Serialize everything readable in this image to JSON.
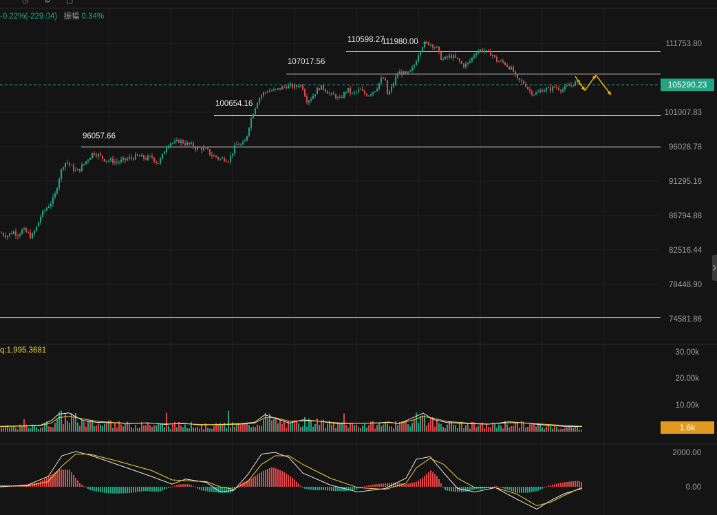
{
  "header": {
    "change_text": "-0.22%(-229.04)",
    "amplitude_label": "振幅",
    "amplitude_value": "0.34%"
  },
  "colors": {
    "up": "#21a584",
    "down": "#e0474b",
    "current_price_bg": "#21a584",
    "volume_tag_bg": "#e09a1e",
    "ma_white": "#e6e6e6",
    "ma_yellow": "#f0d23a",
    "forecast_arrow": "#f5b800"
  },
  "chart_data": {
    "type": "candlestick",
    "price_axis": {
      "ticks": [
        "111753.80",
        "101007.83",
        "96028.78",
        "91295.16",
        "86794.88",
        "82516.44",
        "78448.90",
        "74581.86"
      ],
      "tick_values": [
        111753.8,
        101007.83,
        96028.78,
        91295.16,
        86794.88,
        82516.44,
        78448.9,
        74581.86
      ],
      "current_price": "105290.23",
      "current_price_value": 105290.23
    },
    "levels": [
      {
        "label": "110598.27",
        "value": 110598.27
      },
      {
        "label": "107017.56",
        "value": 107017.56
      },
      {
        "label": "100654.16",
        "value": 100654.16
      },
      {
        "label": "96057.66",
        "value": 96057.66
      },
      {
        "label": "",
        "value": 74700
      }
    ],
    "high_marker": "111980.00",
    "high_marker_value": 111980,
    "price_path": [
      [
        0,
        84600
      ],
      [
        10,
        84300
      ],
      [
        18,
        84800
      ],
      [
        25,
        84500
      ],
      [
        32,
        85000
      ],
      [
        40,
        84500
      ],
      [
        45,
        84100
      ],
      [
        52,
        85300
      ],
      [
        58,
        86700
      ],
      [
        65,
        87600
      ],
      [
        72,
        88400
      ],
      [
        78,
        89100
      ],
      [
        84,
        91500
      ],
      [
        90,
        93400
      ],
      [
        96,
        94000
      ],
      [
        102,
        93300
      ],
      [
        110,
        92600
      ],
      [
        116,
        93000
      ],
      [
        122,
        93800
      ],
      [
        128,
        94500
      ],
      [
        134,
        95200
      ],
      [
        140,
        95000
      ],
      [
        150,
        94300
      ],
      [
        160,
        94100
      ],
      [
        170,
        93900
      ],
      [
        180,
        94200
      ],
      [
        190,
        94500
      ],
      [
        200,
        94700
      ],
      [
        210,
        94400
      ],
      [
        220,
        94600
      ],
      [
        228,
        93700
      ],
      [
        234,
        94500
      ],
      [
        240,
        96000
      ],
      [
        246,
        96700
      ],
      [
        252,
        96500
      ],
      [
        260,
        96900
      ],
      [
        268,
        96500
      ],
      [
        276,
        96300
      ],
      [
        284,
        95800
      ],
      [
        292,
        95800
      ],
      [
        300,
        95500
      ],
      [
        306,
        94800
      ],
      [
        312,
        94700
      ],
      [
        318,
        94300
      ],
      [
        325,
        94400
      ],
      [
        332,
        94200
      ],
      [
        338,
        95600
      ],
      [
        344,
        96500
      ],
      [
        350,
        96200
      ],
      [
        356,
        96900
      ],
      [
        362,
        99500
      ],
      [
        368,
        101300
      ],
      [
        374,
        103000
      ],
      [
        380,
        103800
      ],
      [
        386,
        104300
      ],
      [
        392,
        104400
      ],
      [
        398,
        104400
      ],
      [
        404,
        104600
      ],
      [
        410,
        104900
      ],
      [
        416,
        105100
      ],
      [
        422,
        105100
      ],
      [
        428,
        104900
      ],
      [
        434,
        105400
      ],
      [
        440,
        104700
      ],
      [
        444,
        102800
      ],
      [
        450,
        103100
      ],
      [
        456,
        103900
      ],
      [
        462,
        104800
      ],
      [
        468,
        104900
      ],
      [
        474,
        104300
      ],
      [
        480,
        103700
      ],
      [
        486,
        103600
      ],
      [
        492,
        102900
      ],
      [
        498,
        103800
      ],
      [
        504,
        104600
      ],
      [
        510,
        103800
      ],
      [
        516,
        104100
      ],
      [
        522,
        104600
      ],
      [
        528,
        103900
      ],
      [
        534,
        103700
      ],
      [
        540,
        104200
      ],
      [
        546,
        104700
      ],
      [
        552,
        106000
      ],
      [
        558,
        106400
      ],
      [
        562,
        103800
      ],
      [
        566,
        104300
      ],
      [
        572,
        105800
      ],
      [
        578,
        107300
      ],
      [
        584,
        107100
      ],
      [
        590,
        106900
      ],
      [
        596,
        107400
      ],
      [
        602,
        108500
      ],
      [
        606,
        109900
      ],
      [
        610,
        110900
      ],
      [
        614,
        111600
      ],
      [
        618,
        111800
      ],
      [
        624,
        111700
      ],
      [
        630,
        111300
      ],
      [
        634,
        111000
      ],
      [
        638,
        109800
      ],
      [
        642,
        109200
      ],
      [
        648,
        109500
      ],
      [
        654,
        109800
      ],
      [
        660,
        109500
      ],
      [
        666,
        109000
      ],
      [
        672,
        108300
      ],
      [
        678,
        108500
      ],
      [
        684,
        109300
      ],
      [
        690,
        110400
      ],
      [
        696,
        110700
      ],
      [
        702,
        110700
      ],
      [
        708,
        110300
      ],
      [
        714,
        110100
      ],
      [
        720,
        109100
      ],
      [
        726,
        108900
      ],
      [
        732,
        108700
      ],
      [
        738,
        108100
      ],
      [
        744,
        107600
      ],
      [
        750,
        106100
      ],
      [
        756,
        105800
      ],
      [
        762,
        105400
      ],
      [
        768,
        104400
      ],
      [
        774,
        103900
      ],
      [
        780,
        104000
      ],
      [
        786,
        104500
      ],
      [
        792,
        104600
      ],
      [
        798,
        104600
      ],
      [
        804,
        104900
      ],
      [
        810,
        104800
      ],
      [
        816,
        104500
      ],
      [
        822,
        104900
      ],
      [
        828,
        105300
      ],
      [
        834,
        105500
      ],
      [
        840,
        105700
      ],
      [
        846,
        105290
      ]
    ],
    "forecast_path": [
      [
        836,
        106600
      ],
      [
        850,
        104400
      ],
      [
        866,
        106800
      ],
      [
        888,
        103700
      ]
    ],
    "volume_panel": {
      "label": "q:1,995.3681",
      "ticks": [
        "30.00k",
        "20.00k",
        "10.00k"
      ],
      "tick_values": [
        30000,
        20000,
        10000
      ],
      "current_tag": "1.6k",
      "current_value": 1600,
      "series": [
        {
          "x": [
            0,
            40,
            60,
            75,
            85,
            100,
            120,
            140,
            165,
            190,
            215,
            240,
            265,
            290,
            320,
            350,
            370,
            385,
            400,
            420,
            440,
            460,
            490,
            520,
            550,
            565,
            580,
            600,
            615,
            630,
            650,
            680,
            710,
            740,
            760,
            790,
            820,
            846
          ],
          "values": [
            2000,
            2200,
            2500,
            4200,
            6500,
            7000,
            4200,
            3500,
            3300,
            3000,
            3300,
            2700,
            3200,
            2500,
            2700,
            3000,
            3500,
            6300,
            5000,
            3200,
            4400,
            4000,
            3000,
            3100,
            3300,
            3600,
            3000,
            5200,
            6900,
            4500,
            3400,
            3000,
            2800,
            3700,
            3300,
            2500,
            2000,
            1900
          ]
        },
        {
          "x": [
            0,
            40,
            60,
            75,
            85,
            100,
            120,
            140,
            165,
            190,
            215,
            240,
            265,
            290,
            320,
            350,
            370,
            385,
            400,
            420,
            440,
            460,
            490,
            520,
            550,
            565,
            580,
            600,
            615,
            630,
            650,
            680,
            710,
            740,
            760,
            790,
            820,
            846
          ],
          "values": [
            1900,
            2100,
            2300,
            3300,
            5200,
            5800,
            4800,
            3900,
            3400,
            3100,
            3200,
            2900,
            3000,
            2700,
            2600,
            2800,
            3200,
            5200,
            5200,
            3900,
            4000,
            4000,
            3300,
            3100,
            3200,
            3400,
            3100,
            4300,
            5700,
            5000,
            3800,
            3200,
            2900,
            3300,
            3300,
            2800,
            2300,
            2000
          ]
        }
      ]
    },
    "macd_panel": {
      "ticks": [
        "2000.00",
        "0.00"
      ],
      "tick_values": [
        2000,
        0
      ],
      "hist_x": [
        0,
        30,
        55,
        70,
        85,
        100,
        115,
        130,
        150,
        170,
        190,
        210,
        230,
        245,
        260,
        275,
        290,
        305,
        320,
        335,
        350,
        365,
        380,
        395,
        410,
        425,
        440,
        455,
        470,
        485,
        500,
        515,
        530,
        545,
        560,
        575,
        590,
        605,
        615,
        625,
        635,
        645,
        660,
        675,
        690,
        705,
        720,
        735,
        750,
        765,
        780,
        795,
        810,
        825,
        840,
        846
      ],
      "hist_values": [
        0,
        80,
        250,
        600,
        1000,
        1000,
        200,
        -200,
        -350,
        -400,
        -350,
        -250,
        -300,
        -50,
        150,
        150,
        -200,
        -300,
        -350,
        -350,
        200,
        500,
        900,
        1150,
        900,
        500,
        -100,
        -200,
        -200,
        -250,
        -250,
        -180,
        50,
        150,
        200,
        250,
        150,
        300,
        600,
        950,
        600,
        -200,
        -300,
        -300,
        -150,
        -100,
        50,
        -150,
        -350,
        -350,
        -250,
        50,
        200,
        300,
        350,
        250
      ],
      "dif": {
        "x": [
          0,
          40,
          70,
          90,
          110,
          130,
          170,
          220,
          250,
          270,
          300,
          320,
          340,
          360,
          380,
          400,
          420,
          440,
          480,
          520,
          560,
          590,
          605,
          625,
          645,
          665,
          690,
          720,
          750,
          780,
          800,
          820,
          846
        ],
        "values": [
          0,
          100,
          600,
          1800,
          2050,
          1850,
          1300,
          600,
          150,
          450,
          250,
          -300,
          -200,
          700,
          1900,
          2000,
          1700,
          800,
          100,
          -300,
          -100,
          500,
          1600,
          1750,
          800,
          -100,
          -300,
          -50,
          -700,
          -1300,
          -800,
          -400,
          -100
        ]
      },
      "dea": {
        "x": [
          0,
          40,
          70,
          90,
          110,
          130,
          170,
          220,
          250,
          270,
          300,
          320,
          340,
          360,
          380,
          400,
          420,
          440,
          480,
          520,
          560,
          590,
          605,
          625,
          645,
          665,
          690,
          720,
          750,
          780,
          800,
          820,
          846
        ],
        "values": [
          50,
          50,
          300,
          1200,
          1900,
          1900,
          1500,
          950,
          400,
          350,
          300,
          0,
          -150,
          300,
          1300,
          1800,
          1800,
          1300,
          500,
          -50,
          -150,
          200,
          1100,
          1650,
          1300,
          500,
          -50,
          -50,
          -400,
          -1100,
          -900,
          -500,
          -30
        ]
      }
    }
  }
}
